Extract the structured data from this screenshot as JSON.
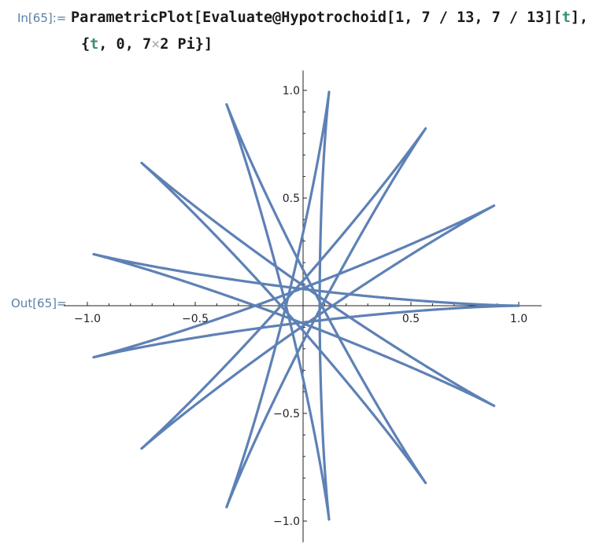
{
  "input_label": "In[65]:=",
  "output_label": "Out[65]=",
  "code": {
    "line1": {
      "part1": "ParametricPlot[Evaluate@Hypotrochoid[1, 7 / 13, 7 / 13][",
      "var": "t",
      "part2": "],"
    },
    "line2": {
      "part1": "{",
      "var": "t",
      "part2": ", 0, 7",
      "times": "×",
      "part3": "2 Pi}]"
    }
  },
  "chart_data": {
    "type": "line",
    "curve": "hypotrochoid",
    "parameters": {
      "R": 1,
      "r": "7/13",
      "d": "7/13"
    },
    "t_range": [
      0,
      "7 × 2 Pi"
    ],
    "xlim": [
      -1.0,
      1.05
    ],
    "ylim": [
      -1.1,
      1.1
    ],
    "x_ticks": [
      "−1.0",
      "−0.5",
      "0.5",
      "1.0"
    ],
    "y_ticks": [
      "1.0",
      "0.5",
      "−0.5",
      "−1.0"
    ],
    "x_tick_values": [
      -1.0,
      -0.5,
      0.5,
      1.0
    ],
    "y_tick_values": [
      1.0,
      0.5,
      -0.5,
      -1.0
    ],
    "line_color": "#5e81b5",
    "axis_color": "#222222",
    "grid": false
  }
}
